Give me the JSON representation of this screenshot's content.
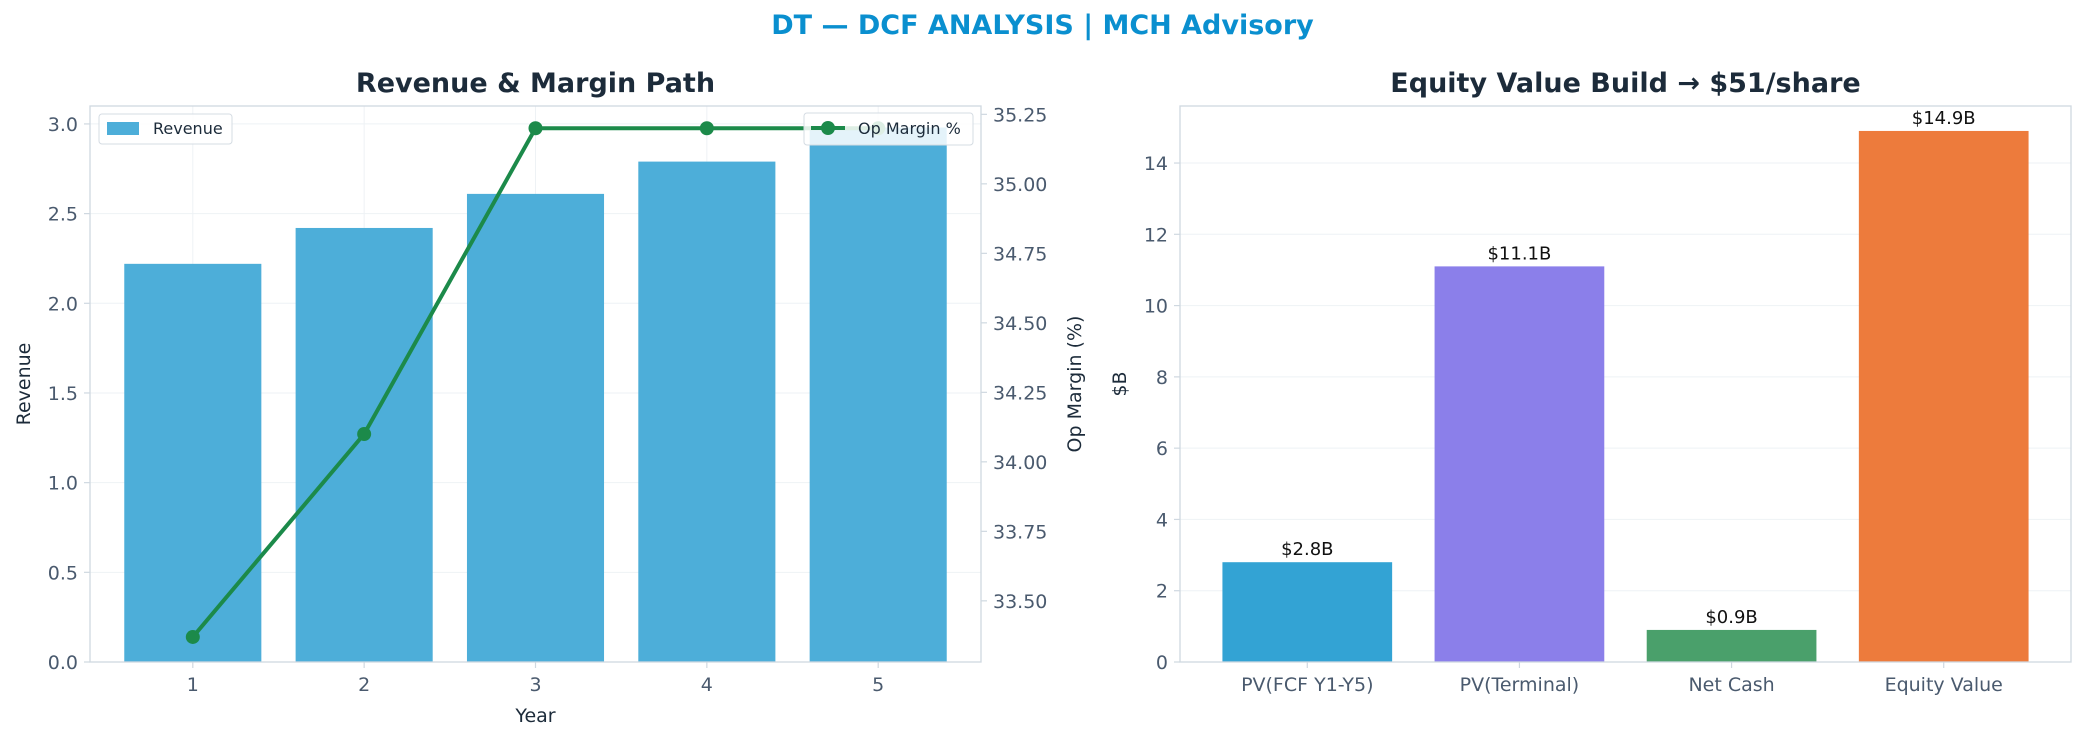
{
  "figure_title": "DT — DCF ANALYSIS | MCH Advisory",
  "colors": {
    "title": "#0a8fcf",
    "panel_title": "#1c2b3a",
    "tick": "#4a5a6e",
    "axis_label": "#1c2b3a",
    "spine": "#cfd8e0",
    "grid": "#eef2f5",
    "revenue_bar": "#4daed9",
    "margin_line": "#1c8a4a"
  },
  "chart_data": [
    {
      "type": "bar",
      "title": "Revenue & Margin Path",
      "xlabel": "Year",
      "ylabel": "Revenue",
      "y2label": "Op Margin (%)",
      "categories": [
        "1",
        "2",
        "3",
        "4",
        "5"
      ],
      "ylim": [
        0,
        3.1
      ],
      "yticks": [
        "0.0",
        "0.5",
        "1.0",
        "1.5",
        "2.0",
        "2.5",
        "3.0"
      ],
      "y2lim": [
        33.28,
        35.28
      ],
      "y2ticks": [
        "33.50",
        "33.75",
        "34.00",
        "34.25",
        "34.50",
        "34.75",
        "35.00",
        "35.25"
      ],
      "grid": true,
      "series": [
        {
          "name": "Revenue",
          "type": "bar",
          "axis": "left",
          "color": "#4daed9",
          "values": [
            2.22,
            2.42,
            2.61,
            2.79,
            2.98
          ]
        },
        {
          "name": "Op Margin %",
          "type": "line",
          "axis": "right",
          "color": "#1c8a4a",
          "values": [
            33.37,
            34.1,
            35.2,
            35.2,
            35.2
          ]
        }
      ],
      "legend": [
        {
          "label": "Revenue",
          "placement": "top-left"
        },
        {
          "label": "Op Margin %",
          "placement": "top-right"
        }
      ]
    },
    {
      "type": "bar",
      "title": "Equity Value Build → $51/share",
      "xlabel": "",
      "ylabel": "$B",
      "categories": [
        "PV(FCF Y1-Y5)",
        "PV(Terminal)",
        "Net Cash",
        "Equity Value"
      ],
      "values": [
        2.8,
        11.1,
        0.9,
        14.9
      ],
      "data_labels": [
        "$2.8B",
        "$11.1B",
        "$0.9B",
        "$14.9B"
      ],
      "colors": [
        "#33a3d4",
        "#8b7fea",
        "#4aa06b",
        "#ed7b3c"
      ],
      "ylim": [
        0,
        15.6
      ],
      "yticks": [
        "0",
        "2",
        "4",
        "6",
        "8",
        "10",
        "12",
        "14"
      ],
      "grid": true
    }
  ]
}
